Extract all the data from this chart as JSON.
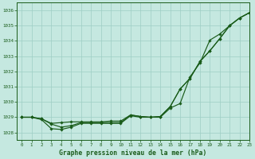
{
  "title": "Graphe pression niveau de la mer (hPa)",
  "bg_color": "#c5e8e0",
  "grid_color": "#9ecec4",
  "line_color": "#1a5c1a",
  "xlim": [
    -0.5,
    23
  ],
  "ylim": [
    1027.5,
    1036.5
  ],
  "yticks": [
    1028,
    1029,
    1030,
    1031,
    1032,
    1033,
    1034,
    1035,
    1036
  ],
  "xticks": [
    0,
    1,
    2,
    3,
    4,
    5,
    6,
    7,
    8,
    9,
    10,
    11,
    12,
    13,
    14,
    15,
    16,
    17,
    18,
    19,
    20,
    21,
    22,
    23
  ],
  "line1": [
    1029.0,
    1029.0,
    1028.9,
    1028.6,
    1028.65,
    1028.7,
    1028.7,
    1028.7,
    1028.7,
    1028.75,
    1028.75,
    1029.15,
    1029.05,
    1029.0,
    1029.05,
    1029.7,
    1030.85,
    1031.55,
    1032.65,
    1033.35,
    1034.15,
    1035.0,
    1035.5,
    1035.85
  ],
  "line2": [
    1029.0,
    1029.0,
    1028.9,
    1028.55,
    1028.35,
    1028.45,
    1028.65,
    1028.65,
    1028.65,
    1028.65,
    1028.65,
    1029.15,
    1029.05,
    1029.0,
    1029.05,
    1029.7,
    1030.85,
    1031.55,
    1032.65,
    1033.35,
    1034.15,
    1035.0,
    1035.5,
    1035.85
  ],
  "line3": [
    1029.0,
    1029.0,
    1028.85,
    1028.25,
    1028.2,
    1028.35,
    1028.6,
    1028.6,
    1028.6,
    1028.6,
    1028.6,
    1029.1,
    1029.0,
    1029.0,
    1029.0,
    1029.6,
    1029.9,
    1031.65,
    1032.55,
    1034.05,
    1034.45,
    1035.0,
    1035.5,
    1035.85
  ],
  "marker": "D",
  "markersize": 1.8,
  "linewidth": 0.85
}
